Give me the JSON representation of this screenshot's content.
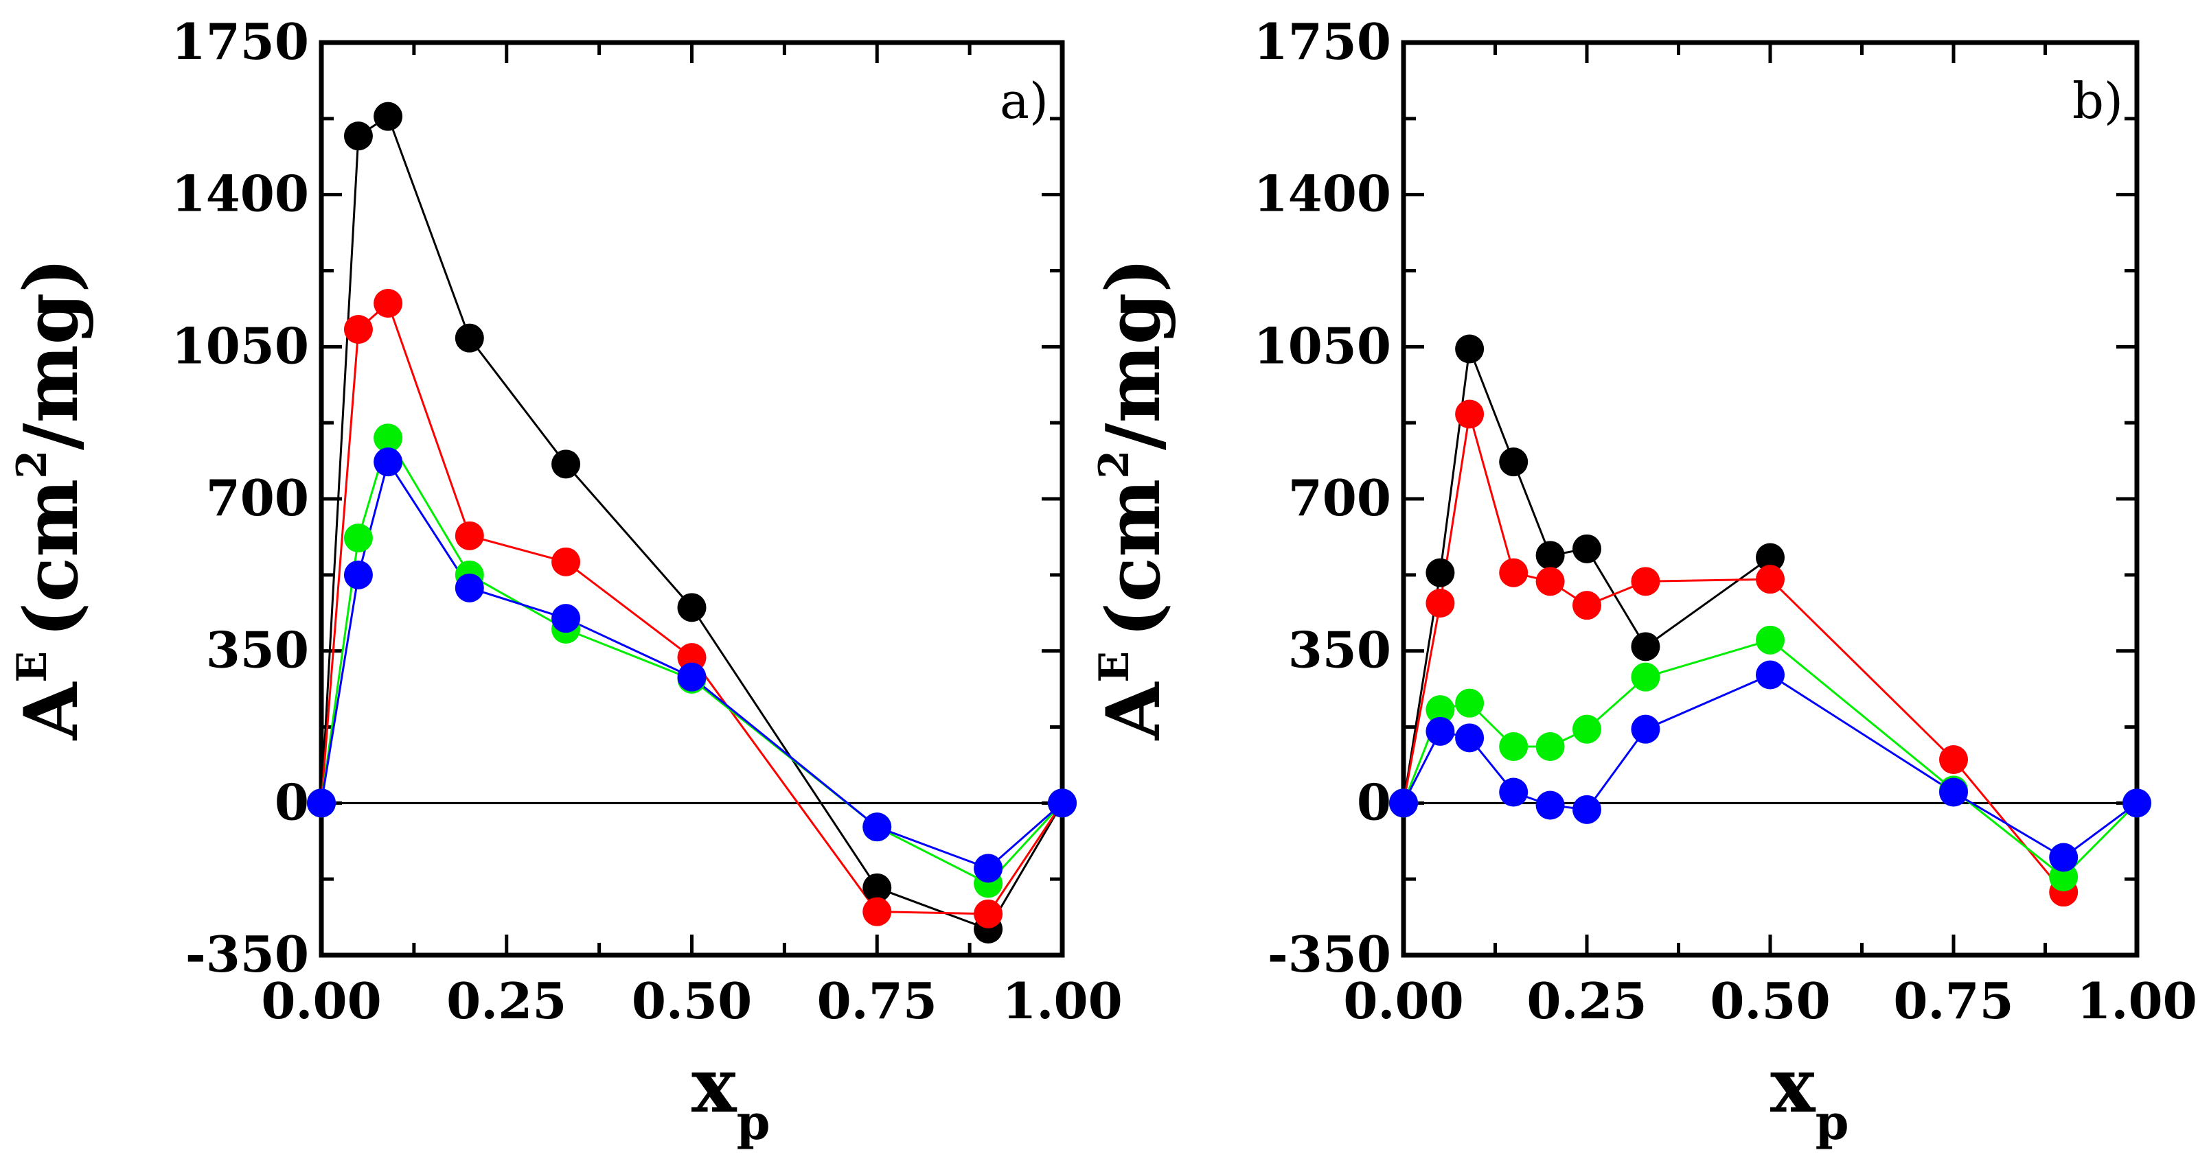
{
  "chart_data": [
    {
      "type": "line",
      "panel_label": "a)",
      "xlabel": "x",
      "xlabel_sub": "p",
      "ylabel": "A",
      "ylabel_sup": "E",
      "ylabel_units_open": "(cm",
      "ylabel_units_sup": "2",
      "ylabel_units_close": "/mg)",
      "xlim": [
        0,
        1
      ],
      "ylim": [
        -350,
        1750
      ],
      "x_ticks": [
        "0.00",
        "0.25",
        "0.50",
        "0.75",
        "1.00"
      ],
      "y_ticks": [
        "-350",
        "0",
        "350",
        "700",
        "1050",
        "1400",
        "1750"
      ],
      "x_tick_values": [
        0,
        0.25,
        0.5,
        0.75,
        1.0
      ],
      "y_tick_values": [
        -350,
        0,
        350,
        700,
        1050,
        1400,
        1750
      ],
      "zero_line": true,
      "series": [
        {
          "name": "black",
          "color": "#000000",
          "x": [
            0,
            0.05,
            0.09,
            0.2,
            0.33,
            0.5,
            0.75,
            0.9,
            1.0
          ],
          "values": [
            0,
            1535,
            1580,
            1070,
            780,
            450,
            -195,
            -290,
            0
          ]
        },
        {
          "name": "red",
          "color": "#ff0000",
          "x": [
            0,
            0.05,
            0.09,
            0.2,
            0.33,
            0.5,
            0.75,
            0.9,
            1.0
          ],
          "values": [
            0,
            1090,
            1150,
            615,
            555,
            335,
            -250,
            -255,
            0
          ]
        },
        {
          "name": "green",
          "color": "#00ee00",
          "x": [
            0,
            0.05,
            0.09,
            0.2,
            0.33,
            0.5,
            0.75,
            0.9,
            1.0
          ],
          "values": [
            0,
            610,
            840,
            525,
            400,
            285,
            -55,
            -185,
            0
          ]
        },
        {
          "name": "blue",
          "color": "#0000ff",
          "x": [
            0,
            0.05,
            0.09,
            0.2,
            0.33,
            0.5,
            0.75,
            0.9,
            1.0
          ],
          "values": [
            0,
            525,
            785,
            495,
            425,
            290,
            -55,
            -150,
            0
          ]
        }
      ]
    },
    {
      "type": "line",
      "panel_label": "b)",
      "xlabel": "x",
      "xlabel_sub": "p",
      "ylabel": "A",
      "ylabel_sup": "E",
      "ylabel_units_open": "(cm",
      "ylabel_units_sup": "2",
      "ylabel_units_close": "/mg)",
      "xlim": [
        0,
        1
      ],
      "ylim": [
        -350,
        1750
      ],
      "x_ticks": [
        "0.00",
        "0.25",
        "0.50",
        "0.75",
        "1.00"
      ],
      "y_ticks": [
        "-350",
        "0",
        "350",
        "700",
        "1050",
        "1400",
        "1750"
      ],
      "x_tick_values": [
        0,
        0.25,
        0.5,
        0.75,
        1.0
      ],
      "y_tick_values": [
        -350,
        0,
        350,
        700,
        1050,
        1400,
        1750
      ],
      "zero_line": true,
      "series": [
        {
          "name": "black",
          "color": "#000000",
          "x": [
            0,
            0.05,
            0.09,
            0.15,
            0.2,
            0.25,
            0.33,
            0.5
          ],
          "values": [
            0,
            530,
            1045,
            785,
            570,
            585,
            360,
            565
          ]
        },
        {
          "name": "red",
          "color": "#ff0000",
          "x": [
            0,
            0.05,
            0.09,
            0.15,
            0.2,
            0.25,
            0.33,
            0.5,
            0.75,
            0.9
          ],
          "values": [
            0,
            460,
            895,
            530,
            510,
            455,
            510,
            515,
            100,
            -205
          ]
        },
        {
          "name": "green",
          "color": "#00ee00",
          "x": [
            0,
            0.05,
            0.09,
            0.15,
            0.2,
            0.25,
            0.33,
            0.5,
            0.75,
            0.9,
            1.0
          ],
          "values": [
            0,
            215,
            230,
            130,
            130,
            170,
            290,
            375,
            30,
            -170,
            0
          ]
        },
        {
          "name": "blue",
          "color": "#0000ff",
          "x": [
            0,
            0.05,
            0.09,
            0.15,
            0.2,
            0.25,
            0.33,
            0.5,
            0.75,
            0.9,
            1.0
          ],
          "values": [
            0,
            165,
            150,
            25,
            -5,
            -15,
            170,
            295,
            25,
            -125,
            0
          ]
        }
      ]
    }
  ]
}
